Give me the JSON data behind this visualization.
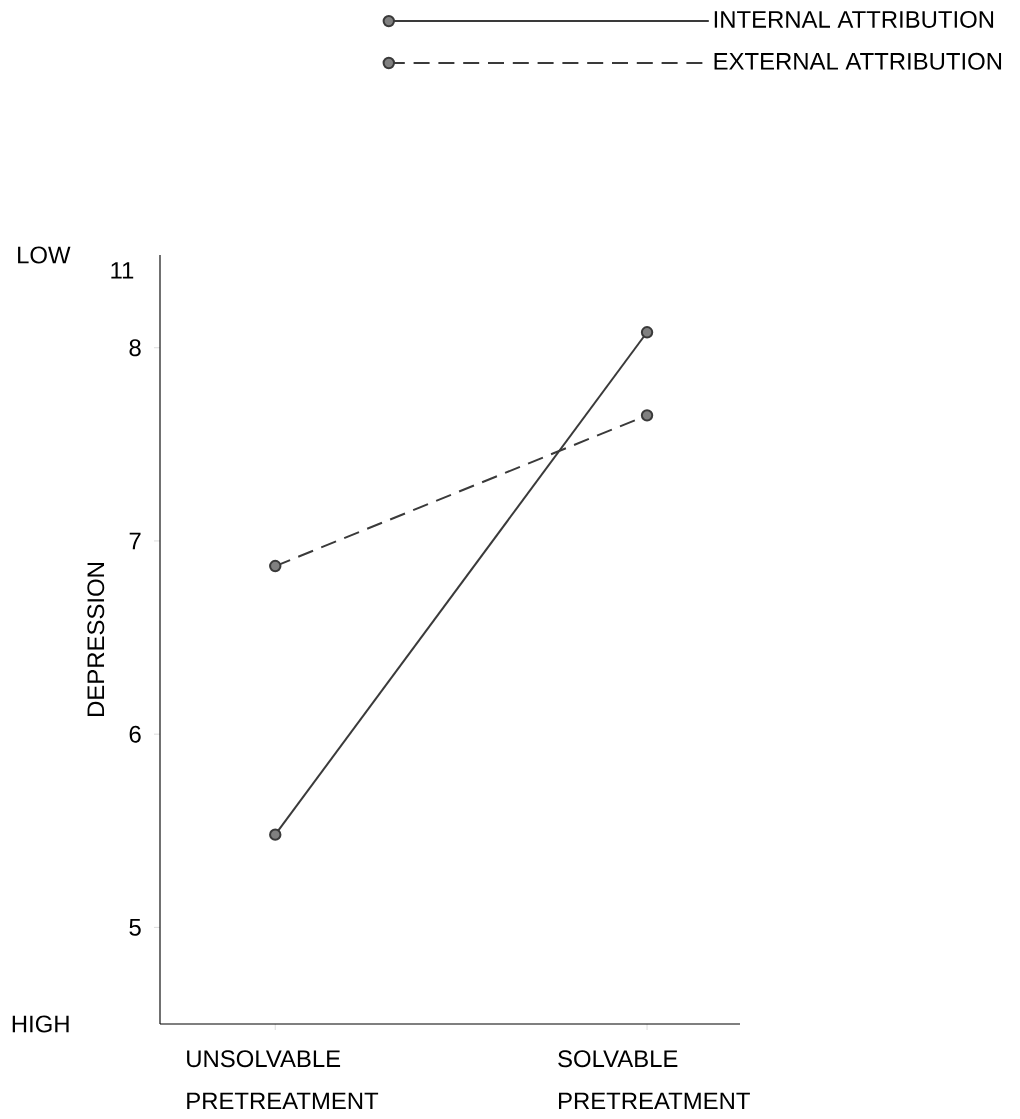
{
  "chart_data": {
    "type": "line",
    "ylabel": "DEPRESSION",
    "categories": [
      "UNSOLVABLE PRETREATMENT",
      "SOLVABLE PRETREATMENT"
    ],
    "series": [
      {
        "name": "INTERNAL ATTRIBUTION",
        "color": "#3a3a3a",
        "values": [
          5.48,
          8.08
        ],
        "line_style": "solid"
      },
      {
        "name": "EXTERNAL ATTRIBUTION",
        "color": "#3a3a3a",
        "values": [
          6.87,
          7.65
        ],
        "line_style": "dashed"
      }
    ],
    "ylim": [
      4.5,
      8.48
    ],
    "yticks": [
      5,
      6,
      7,
      8
    ],
    "annotations": [
      "LOW",
      "11",
      "HIGH"
    ],
    "marker": "circle",
    "legend": "top right"
  }
}
